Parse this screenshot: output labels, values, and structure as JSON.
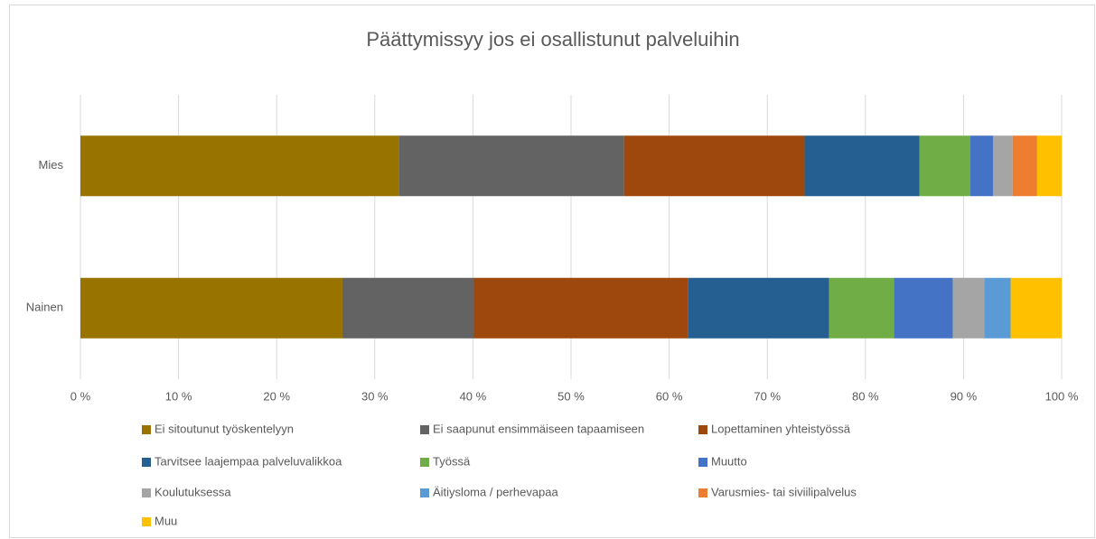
{
  "chart_data": {
    "type": "stacked_bar_horizontal",
    "title": "Päättymissyy jos ei osallistunut palveluihin",
    "categories": [
      "Mies",
      "Nainen"
    ],
    "series": [
      {
        "name": "Ei sitoutunut työskentelyyn",
        "color": "#997300",
        "values": [
          32.5,
          26.7
        ]
      },
      {
        "name": "Ei saapunut ensimmäiseen tapaamiseen",
        "color": "#636363",
        "values": [
          22.9,
          13.4
        ]
      },
      {
        "name": "Lopettaminen yhteistyössä",
        "color": "#9e480e",
        "values": [
          18.4,
          21.8
        ]
      },
      {
        "name": "Tarvitsee laajempaa palveluvalikkoa",
        "color": "#255e91",
        "values": [
          11.7,
          14.4
        ]
      },
      {
        "name": "Työssä",
        "color": "#70ad47",
        "values": [
          5.2,
          6.6
        ]
      },
      {
        "name": "Muutto",
        "color": "#4472c4",
        "values": [
          2.3,
          6.0
        ]
      },
      {
        "name": "Koulutuksessa",
        "color": "#a5a5a5",
        "values": [
          2.0,
          3.2
        ]
      },
      {
        "name": "Äitiysloma / perhevapaa",
        "color": "#5b9bd5",
        "values": [
          0,
          2.7
        ]
      },
      {
        "name": "Varusmies- tai siviilipalvelus",
        "color": "#ed7d31",
        "values": [
          2.5,
          0
        ]
      },
      {
        "name": "Muu",
        "color": "#ffc000",
        "values": [
          2.5,
          5.2
        ]
      }
    ],
    "xlim": [
      0,
      100
    ],
    "xticks": [
      {
        "value": 0,
        "label": "0 %"
      },
      {
        "value": 10,
        "label": "10 %"
      },
      {
        "value": 20,
        "label": "20 %"
      },
      {
        "value": 30,
        "label": "30 %"
      },
      {
        "value": 40,
        "label": "40 %"
      },
      {
        "value": 50,
        "label": "50 %"
      },
      {
        "value": 60,
        "label": "60 %"
      },
      {
        "value": 70,
        "label": "70 %"
      },
      {
        "value": 80,
        "label": "80 %"
      },
      {
        "value": 90,
        "label": "90 %"
      },
      {
        "value": 100,
        "label": "100 %"
      }
    ],
    "grid": true,
    "legend": "bottom"
  }
}
